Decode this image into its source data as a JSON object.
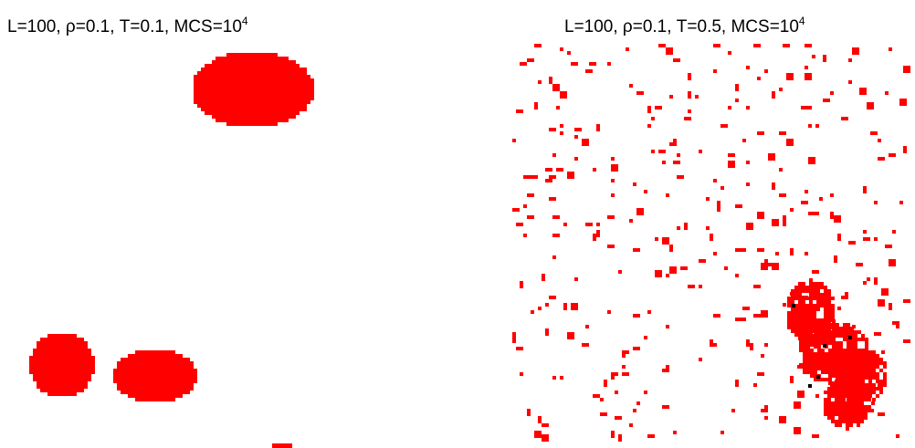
{
  "panels": [
    {
      "id": "left",
      "title": {
        "prefix": "L=100, ρ=0.1, T=0.1, MCS=10",
        "exponent": "4"
      },
      "colors": {
        "particle": "#ff0000",
        "defect": "#000000",
        "background": "#ffffff"
      }
    },
    {
      "id": "right",
      "title": {
        "prefix": "L=100, ρ=0.1, T=0.5, MCS=10",
        "exponent": "4"
      },
      "colors": {
        "particle": "#ff0000",
        "defect": "#000000",
        "background": "#ffffff"
      }
    }
  ]
}
